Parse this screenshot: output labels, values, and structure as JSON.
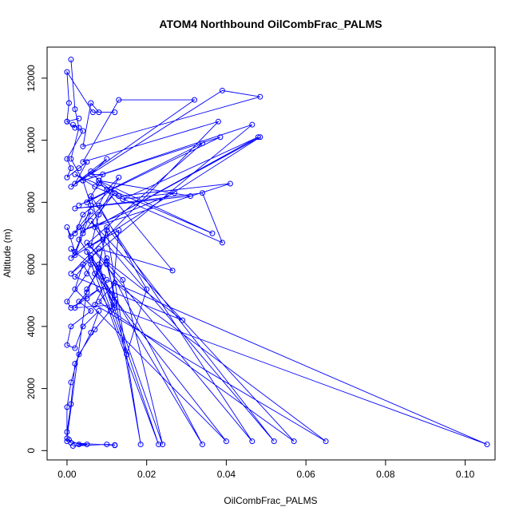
{
  "chart_data": {
    "type": "line",
    "title": "ATOM4 Northbound OilCombFrac_PALMS",
    "xlabel": "OilCombFrac_PALMS",
    "ylabel": "Altitude (m)",
    "xlim": [
      -0.005,
      0.1075
    ],
    "ylim": [
      -300,
      13000
    ],
    "x_ticks": [
      0.0,
      0.02,
      0.04,
      0.06,
      0.08,
      0.1
    ],
    "x_tick_labels": [
      "0.00",
      "0.02",
      "0.04",
      "0.06",
      "0.08",
      "0.10"
    ],
    "y_ticks": [
      0,
      2000,
      4000,
      6000,
      8000,
      10000,
      12000
    ],
    "y_tick_labels": [
      "0",
      "2000",
      "4000",
      "6000",
      "8000",
      "10000",
      "12000"
    ],
    "grid": false,
    "marker": "open-circle",
    "series": [
      {
        "color": "#0000ff",
        "points": [
          [
            0.001,
            12600
          ],
          [
            0.002,
            11000
          ],
          [
            0.003,
            10400
          ],
          [
            0.001,
            9400
          ],
          [
            0.004,
            8700
          ],
          [
            0.006,
            7900
          ],
          [
            0.003,
            6800
          ],
          [
            0.008,
            5900
          ],
          [
            0.005,
            5100
          ],
          [
            0.002,
            4600
          ],
          [
            0.012,
            4700
          ],
          [
            0.007,
            3900
          ],
          [
            0.003,
            3100
          ],
          [
            0.001,
            2200
          ],
          [
            0.0,
            1400
          ],
          [
            0.0,
            300
          ],
          [
            0.0005,
            350
          ],
          [
            0.003,
            200
          ],
          [
            0.005,
            200
          ],
          [
            0.0015,
            150
          ],
          [
            0.01,
            200
          ],
          [
            0.012,
            180
          ],
          [
            0.012,
            170
          ],
          [
            0.001,
            250
          ],
          [
            0.0,
            400
          ],
          [
            0.005,
            5200
          ],
          [
            0.01,
            6200
          ],
          [
            0.012,
            4800
          ],
          [
            0.009,
            5600
          ],
          [
            0.006,
            6300
          ],
          [
            0.015,
            3100
          ],
          [
            0.02,
            5200
          ],
          [
            0.008,
            7900
          ],
          [
            0.01,
            8400
          ],
          [
            0.013,
            8800
          ],
          [
            0.008,
            7600
          ],
          [
            0.006,
            6600
          ],
          [
            0.013,
            7100
          ],
          [
            0.011,
            4500
          ],
          [
            0.004,
            6000
          ],
          [
            0.002,
            5200
          ],
          [
            0.04,
            300
          ],
          [
            0.007,
            5700
          ],
          [
            0.005,
            6400
          ],
          [
            0.023,
            200
          ],
          [
            0.008,
            5900
          ],
          [
            0.01,
            7200
          ],
          [
            0.052,
            300
          ],
          [
            0.009,
            6800
          ],
          [
            0.006,
            7400
          ],
          [
            0.057,
            300
          ],
          [
            0.008,
            4800
          ],
          [
            0.012,
            5400
          ],
          [
            0.065,
            300
          ],
          [
            0.007,
            4700
          ],
          [
            0.01,
            5500
          ],
          [
            0.1055,
            200
          ],
          [
            0.012,
            4600
          ],
          [
            0.006,
            6200
          ],
          [
            0.034,
            200
          ],
          [
            0.01,
            6000
          ],
          [
            0.012,
            5000
          ],
          [
            0.0185,
            200
          ],
          [
            0.01,
            7100
          ],
          [
            0.008,
            6000
          ],
          [
            0.024,
            200
          ],
          [
            0.014,
            5500
          ],
          [
            0.005,
            6700
          ],
          [
            0.0465,
            300
          ],
          [
            0.006,
            8200
          ],
          [
            0.01,
            6100
          ],
          [
            0.029,
            4200
          ],
          [
            0.002,
            5600
          ],
          [
            0.008,
            6500
          ],
          [
            0.0265,
            5800
          ],
          [
            0.006,
            9000
          ],
          [
            0.008,
            8700
          ],
          [
            0.0365,
            7000
          ],
          [
            0.002,
            8900
          ],
          [
            0.007,
            8500
          ],
          [
            0.039,
            6700
          ],
          [
            0.034,
            8300
          ],
          [
            0.002,
            7800
          ],
          [
            0.031,
            8200
          ],
          [
            0.008,
            8700
          ],
          [
            0.013,
            8200
          ],
          [
            0.041,
            8600
          ],
          [
            0.004,
            7100
          ],
          [
            0.027,
            8300
          ],
          [
            0.014,
            8100
          ],
          [
            0.048,
            10100
          ],
          [
            0.007,
            7200
          ],
          [
            0.0485,
            10100
          ],
          [
            0.001,
            6200
          ],
          [
            0.034,
            9900
          ],
          [
            0.003,
            7900
          ],
          [
            0.0385,
            10100
          ],
          [
            0.004,
            8700
          ],
          [
            0.0465,
            10500
          ],
          [
            0.001,
            5700
          ],
          [
            0.038,
            10600
          ],
          [
            0.004,
            9300
          ],
          [
            0.013,
            11300
          ],
          [
            0.032,
            11300
          ],
          [
            0.001,
            8500
          ],
          [
            0.039,
            11600
          ],
          [
            0.0485,
            11400
          ],
          [
            0.004,
            9800
          ],
          [
            0.006,
            11200
          ],
          [
            0.008,
            10900
          ],
          [
            0.012,
            10900
          ],
          [
            0.0065,
            10900
          ],
          [
            0.0,
            12200
          ],
          [
            0.0005,
            11200
          ],
          [
            0.0,
            10600
          ],
          [
            0.003,
            10700
          ],
          [
            0.0,
            10600
          ],
          [
            0.002,
            10400
          ],
          [
            0.0015,
            10500
          ],
          [
            0.004,
            10300
          ],
          [
            0.0,
            9400
          ],
          [
            0.001,
            9100
          ],
          [
            0.0,
            8800
          ],
          [
            0.003,
            9100
          ],
          [
            0.005,
            9300
          ],
          [
            0.002,
            8600
          ],
          [
            0.01,
            9400
          ],
          [
            0.006,
            8900
          ],
          [
            0.009,
            8900
          ],
          [
            0.008,
            8600
          ],
          [
            0.005,
            8000
          ],
          [
            0.011,
            8400
          ],
          [
            0.004,
            7600
          ],
          [
            0.002,
            7000
          ],
          [
            0.012,
            8300
          ],
          [
            0.004,
            7000
          ],
          [
            0.002,
            6400
          ],
          [
            0.0,
            7200
          ],
          [
            0.001,
            6900
          ],
          [
            0.003,
            7200
          ],
          [
            0.006,
            7700
          ],
          [
            0.002,
            6300
          ],
          [
            0.001,
            6500
          ],
          [
            0.006,
            6000
          ],
          [
            0.005,
            5700
          ],
          [
            0.0,
            4800
          ],
          [
            0.001,
            4600
          ],
          [
            0.005,
            4900
          ],
          [
            0.008,
            5200
          ],
          [
            0.003,
            4800
          ],
          [
            0.006,
            4500
          ],
          [
            0.001,
            4000
          ],
          [
            0.0,
            3400
          ],
          [
            0.002,
            3300
          ],
          [
            0.004,
            4000
          ],
          [
            0.008,
            4500
          ],
          [
            0.006,
            3800
          ],
          [
            0.002,
            2800
          ],
          [
            0.001,
            1500
          ],
          [
            0.0,
            600
          ]
        ]
      }
    ]
  }
}
